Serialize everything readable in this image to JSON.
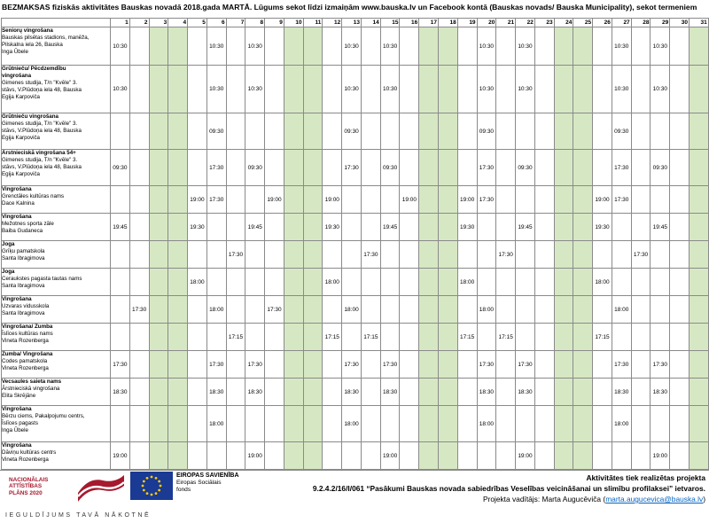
{
  "title": "BEZMAKSAS fiziskās aktivitātes Bauskas novadā 2018.gada MARTĀ. Lūgums sekot līdzi izmaiņām www.bauska.lv un Facebook kontā (Bauskas novads/ Bauska Municipality), sekot termeniem",
  "days": [
    "1",
    "2",
    "3",
    "4",
    "5",
    "6",
    "7",
    "8",
    "9",
    "10",
    "11",
    "12",
    "13",
    "14",
    "15",
    "16",
    "17",
    "18",
    "19",
    "20",
    "21",
    "22",
    "23",
    "24",
    "25",
    "26",
    "27",
    "28",
    "29",
    "30",
    "31"
  ],
  "weekend_days": [
    3,
    4,
    10,
    11,
    17,
    18,
    24,
    25,
    31
  ],
  "rows": [
    {
      "lines": [
        "Seniorų vingrošana",
        "Bauskas pilsētas stadions, manēža,",
        "Pilskalna iela 26, Bauska",
        "Inga Ūbele"
      ],
      "times": {
        "1": "10:30",
        "6": "10:30",
        "8": "10:30",
        "13": "10:30",
        "15": "10:30",
        "20": "10:30",
        "22": "10:30",
        "27": "10:30",
        "29": "10:30"
      }
    },
    {
      "lines": [
        "Grūtnieču/ Pēcdzemdību",
        "vingrošana",
        "Gimenes studija, T/n \"Kvēle\" 3.",
        "stāvs, V.Plūdoņa iela 48, Bauska",
        "Egija Karpoviča"
      ],
      "times": {
        "1": "10:30",
        "6": "10:30",
        "8": "10:30",
        "13": "10:30",
        "15": "10:30",
        "20": "10:30",
        "22": "10:30",
        "27": "10:30",
        "29": "10:30"
      }
    },
    {
      "lines": [
        "Grūtnieču vingrošana",
        "Gimenes studija, T/n \"Kvēle\" 3.",
        "stāvs, V.Plūdoņa iela 48, Bauska",
        "Egija Karpoviča"
      ],
      "times": {
        "6": "09:30",
        "13": "09:30",
        "20": "09:30",
        "27": "09:30"
      }
    },
    {
      "lines": [
        "Ārstnieciskā vingrošana 54+",
        "Gimenes studija, T/n \"Kvēle\" 3.",
        "stāvs, V.Plūdoņa iela 48, Bauska",
        "Egija Karpoviča"
      ],
      "times": {
        "1": "09:30",
        "6": "17:30",
        "8": "09:30",
        "13": "17:30",
        "15": "09:30",
        "20": "17:30",
        "22": "09:30",
        "27": "17:30",
        "29": "09:30"
      }
    },
    {
      "lines": [
        "Vingrošana",
        "Grenctāles kultūras nams",
        "Dace Kalnina"
      ],
      "times": {
        "5": "19:00",
        "6": "17:30",
        "9": "19:00",
        "12": "19:00",
        "16": "19:00",
        "19": "19:00",
        "20": "17:30",
        "26": "19:00",
        "27": "17:30"
      }
    },
    {
      "lines": [
        "Vingrošana",
        "Mežotnes sporta zāle",
        "Baiba Gudaneca"
      ],
      "times": {
        "1": "19:45",
        "5": "19:30",
        "8": "19:45",
        "12": "19:30",
        "15": "19:45",
        "19": "19:30",
        "22": "19:45",
        "26": "19:30",
        "29": "19:45"
      }
    },
    {
      "lines": [
        "Joga",
        "Grīķu pamatskola",
        "Santa Ibragimova"
      ],
      "times": {
        "7": "17:30",
        "14": "17:30",
        "21": "17:30",
        "28": "17:30"
      }
    },
    {
      "lines": [
        "Joga",
        "Ceraukstes pagasta tautas nams",
        "Santa Ibragimova"
      ],
      "times": {
        "5": "18:00",
        "12": "18:00",
        "19": "18:00",
        "26": "18:00"
      }
    },
    {
      "lines": [
        "Vingrošana",
        "Uzvaras vidusskola",
        "Santa Ibragimova"
      ],
      "times": {
        "2": "17:30",
        "6": "18:00",
        "9": "17:30",
        "13": "18:00",
        "20": "18:00",
        "27": "18:00"
      }
    },
    {
      "lines": [
        "Vingrošana/ Zumba",
        "Īslīces kultūras nams",
        "Vineta Rozenberga"
      ],
      "times": {
        "7": "17:15",
        "12": "17:15",
        "14": "17:15",
        "19": "17:15",
        "21": "17:15",
        "26": "17:15"
      }
    },
    {
      "lines": [
        "Zumba/ Vingrošana",
        "Codes pamatskola",
        "Vineta Rozenberga"
      ],
      "times": {
        "1": "17:30",
        "6": "17:30",
        "8": "17:30",
        "13": "17:30",
        "15": "17:30",
        "20": "17:30",
        "22": "17:30",
        "27": "17:30",
        "29": "17:30"
      }
    },
    {
      "lines": [
        "Vecsaules saieta nams",
        "Ārstnieciskā vingrošana",
        "Elita Skrējāne"
      ],
      "times": {
        "1": "18:30",
        "6": "18:30",
        "8": "18:30",
        "13": "18:30",
        "15": "18:30",
        "20": "18:30",
        "22": "18:30",
        "27": "18:30",
        "29": "18:30"
      }
    },
    {
      "lines": [
        "Vingrošana",
        "Bērzu ciems, Pakalpojumu centrs,",
        "Īslīces pagasts",
        "Inga Ūbele"
      ],
      "times": {
        "6": "18:00",
        "13": "18:00",
        "20": "18:00",
        "27": "18:00"
      }
    },
    {
      "lines": [
        "Vingrošana",
        "Dāviņu kultūras centrs",
        "Vineta Rozenberga"
      ],
      "times": {
        "1": "19:00",
        "8": "19:00",
        "15": "19:00",
        "22": "19:00",
        "29": "19:00"
      }
    }
  ],
  "footer": {
    "nap_text": [
      "NACIONĀLAIS",
      "ATTĪSTĪBAS",
      "PLĀNS 2020"
    ],
    "eu_title": "EIROPAS SAVIENĪBA",
    "eu_fund": [
      "Eiropas Sociālais",
      "fonds"
    ],
    "invest_text": "IEGULDĪJUMS TAVĀ NĀKOTNĒ",
    "project_line1": "Aktivitātes tiek realizētas projekta",
    "project_line2": "9.2.4.2/16/I/061 “Pasākumi Bauskas novada sabiedrības Veselības veicināšanai un slimību profilaksei” ietvaros.",
    "manager_prefix": "Projekta vadītājs: Marta Augucēviča (",
    "manager_email": "marta.augucevica@bauska.lv",
    "manager_suffix": ")",
    "colors": {
      "nap_red": "#a6192e",
      "eu_blue": "#1a3a93",
      "eu_star": "#ffcc00",
      "weekend_green": "#d6e8c3"
    }
  }
}
